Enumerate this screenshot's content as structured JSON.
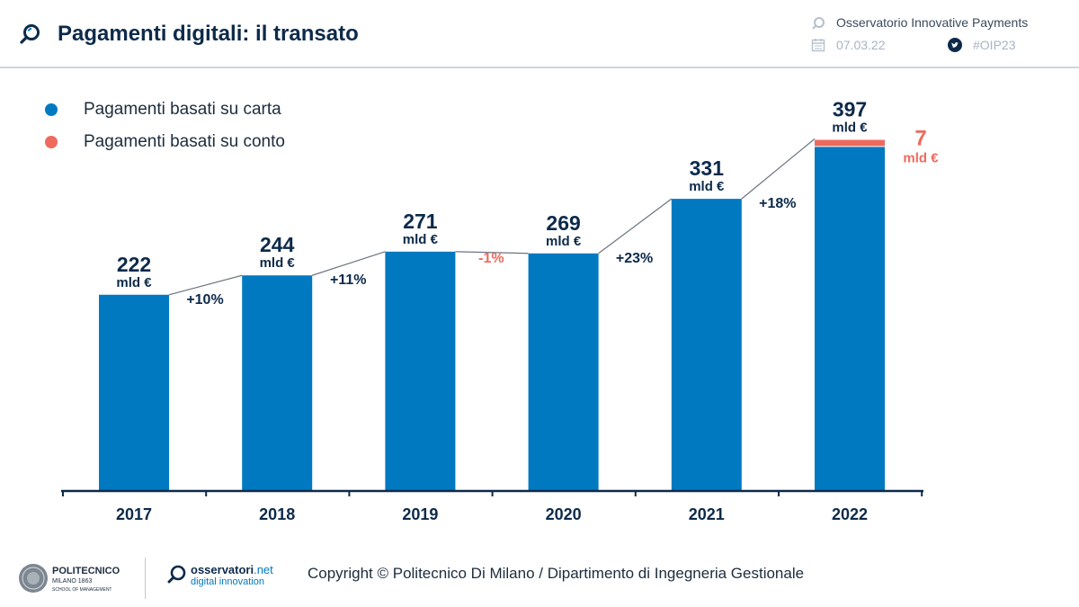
{
  "header": {
    "title": "Pagamenti digitali: il transato",
    "org": "Osservatorio Innovative Payments",
    "date": "07.03.22",
    "hashtag": "#OIP23"
  },
  "legend": [
    {
      "label": "Pagamenti basati su carta",
      "color": "#0079c1"
    },
    {
      "label": "Pagamenti basati su conto",
      "color": "#ee6a5e"
    }
  ],
  "chart_data": {
    "type": "bar",
    "categories": [
      "2017",
      "2018",
      "2019",
      "2020",
      "2021",
      "2022"
    ],
    "series": [
      {
        "name": "Pagamenti basati su carta",
        "values": [
          222,
          244,
          271,
          269,
          331,
          390
        ],
        "color": "#0079c1"
      },
      {
        "name": "Pagamenti basati su conto",
        "values": [
          0,
          0,
          0,
          0,
          0,
          7
        ],
        "color": "#ee6a5e"
      }
    ],
    "totals": [
      "222",
      "244",
      "271",
      "269",
      "331",
      "397"
    ],
    "unit": "mld €",
    "conto_label": "7",
    "growth": [
      {
        "label": "+10%",
        "color": "#0d2a4a"
      },
      {
        "label": "+11%",
        "color": "#0d2a4a"
      },
      {
        "label": "-1%",
        "color": "#ee6a5e"
      },
      {
        "label": "+23%",
        "color": "#0d2a4a"
      },
      {
        "label": "+18%",
        "color": "#0d2a4a"
      }
    ],
    "stacked": true,
    "grid": false,
    "legend_position": "top-left"
  },
  "footer": {
    "uni_name": "POLITECNICO",
    "uni_sub": "MILANO 1863",
    "uni_school": "SCHOOL OF MANAGEMENT",
    "osservatori_a": "osservatori",
    "osservatori_b": ".net",
    "osservatori_c": "digital innovation",
    "copyright": "Copyright © Politecnico Di Milano / Dipartimento di Ingegneria Gestionale"
  },
  "colors": {
    "primary": "#0079c1",
    "accent": "#ee6a5e",
    "navy": "#0d2a4a"
  },
  "icons": [
    "magnifier-logo-icon",
    "calendar-icon",
    "twitter-icon"
  ]
}
